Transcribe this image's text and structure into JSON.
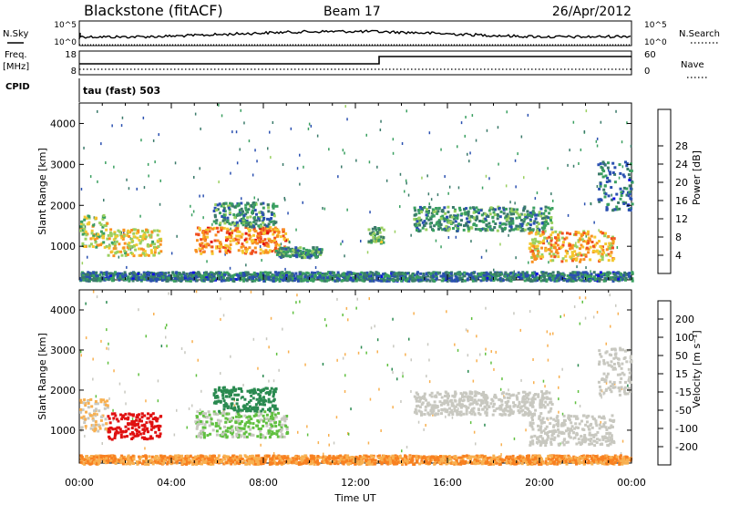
{
  "header": {
    "station": "Blackstone (fitACF)",
    "beam": "Beam 17",
    "date": "26/Apr/2012"
  },
  "labels": {
    "nsky": "N.Sky",
    "nsearch": "N.Search",
    "freq": "Freq.",
    "mhz": "[MHz]",
    "nave": "Nave",
    "cpid": "CPID",
    "cpid_value": "tau (fast) 503",
    "nsky_top": "10^5",
    "nsky_bottom": "10^0",
    "nsearch_top": "10^5",
    "nsearch_bottom": "10^0",
    "freq_top": "18",
    "freq_bottom": "8",
    "nave_top": "60",
    "nave_bottom": "0"
  },
  "chart_data": [
    {
      "type": "heatmap",
      "name": "power",
      "ylabel": "Slant Range [km]",
      "xlabel": "Time UT",
      "xticks": [
        "00:00",
        "04:00",
        "08:00",
        "12:00",
        "16:00",
        "20:00",
        "00:00"
      ],
      "xlim_hours": [
        0,
        24
      ],
      "yticks": [
        1000,
        2000,
        3000,
        4000
      ],
      "ylim": [
        180,
        4500
      ],
      "colorbar": {
        "label": "Power [dB]",
        "ticks": [
          4,
          8,
          12,
          16,
          20,
          24,
          28
        ],
        "range": [
          0,
          30
        ],
        "colors": [
          "#1010e0",
          "#2a50b0",
          "#3a7a6a",
          "#3aa060",
          "#9ad060",
          "#f4c830",
          "#f89020",
          "#f05020",
          "#e01010"
        ]
      },
      "features": [
        {
          "t0": 0.0,
          "t1": 1.2,
          "r0": 1000,
          "r1": 1800,
          "level": 16
        },
        {
          "t0": 1.2,
          "t1": 3.5,
          "r0": 800,
          "r1": 1450,
          "level": 18
        },
        {
          "t0": 5.0,
          "t1": 9.0,
          "r0": 850,
          "r1": 1500,
          "level": 22
        },
        {
          "t0": 5.8,
          "t1": 8.5,
          "r0": 1500,
          "r1": 2100,
          "level": 10
        },
        {
          "t0": 8.5,
          "t1": 10.5,
          "r0": 750,
          "r1": 1000,
          "level": 10
        },
        {
          "t0": 12.5,
          "t1": 13.2,
          "r0": 1100,
          "r1": 1500,
          "level": 12
        },
        {
          "t0": 14.5,
          "t1": 20.5,
          "r0": 1400,
          "r1": 2000,
          "level": 10
        },
        {
          "t0": 19.5,
          "t1": 23.2,
          "r0": 650,
          "r1": 1400,
          "level": 20
        },
        {
          "t0": 22.5,
          "t1": 24.0,
          "r0": 1900,
          "r1": 3100,
          "level": 8
        },
        {
          "t0": 0.0,
          "t1": 24.0,
          "r0": 180,
          "r1": 400,
          "level": 8
        }
      ]
    },
    {
      "type": "heatmap",
      "name": "velocity",
      "ylabel": "Slant Range [km]",
      "xlabel": "Time UT",
      "xticks": [
        "00:00",
        "04:00",
        "08:00",
        "12:00",
        "16:00",
        "20:00",
        "00:00"
      ],
      "xlim_hours": [
        0,
        24
      ],
      "yticks": [
        1000,
        2000,
        3000,
        4000
      ],
      "ylim": [
        180,
        4500
      ],
      "colorbar": {
        "label": "Velocity [m s⁻¹]",
        "ticks": [
          "200",
          "100",
          "50",
          "15",
          "-15",
          "-50",
          "-100",
          "-200"
        ],
        "colors": [
          "#2030b0",
          "#2a60a0",
          "#2a8a50",
          "#60c040",
          "#c8c8c0",
          "#f8b050",
          "#f88020",
          "#f04010",
          "#e01010"
        ]
      },
      "features": [
        {
          "t0": 0.0,
          "t1": 1.2,
          "r0": 1000,
          "r1": 1800,
          "vel": -15
        },
        {
          "t0": 1.2,
          "t1": 3.5,
          "r0": 800,
          "r1": 1450,
          "vel": -200
        },
        {
          "t0": 5.0,
          "t1": 9.0,
          "r0": 850,
          "r1": 1500,
          "vel": 15
        },
        {
          "t0": 5.8,
          "t1": 8.5,
          "r0": 1500,
          "r1": 2100,
          "vel": 50
        },
        {
          "t0": 14.5,
          "t1": 20.5,
          "r0": 1400,
          "r1": 2000,
          "vel": 0
        },
        {
          "t0": 19.5,
          "t1": 23.2,
          "r0": 650,
          "r1": 1400,
          "vel": 0
        },
        {
          "t0": 22.5,
          "t1": 24.0,
          "r0": 1900,
          "r1": 3100,
          "vel": 0
        },
        {
          "t0": 0.0,
          "t1": 24.0,
          "r0": 180,
          "r1": 400,
          "vel": -50
        }
      ]
    }
  ]
}
